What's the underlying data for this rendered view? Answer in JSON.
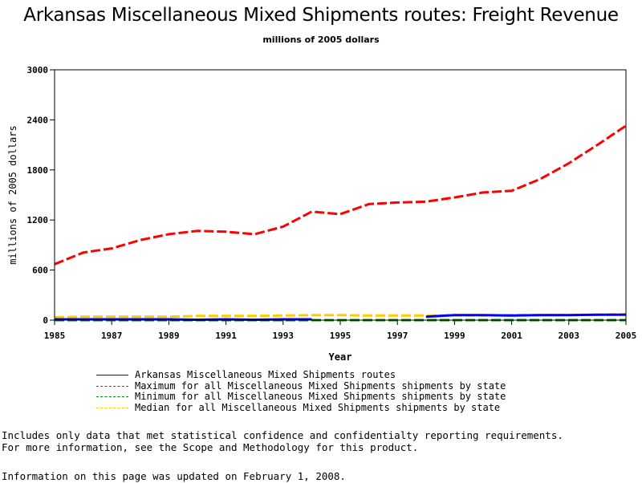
{
  "page": {
    "title": "Arkansas Miscellaneous Mixed Shipments routes: Freight Revenue",
    "subtitle": "millions of 2005 dollars",
    "note_line1": "Includes only data that met statistical confidence and confidentialty reporting requirements.",
    "note_line2": "For more information, see the Scope and Methodology for this product.",
    "updated": "Information on this page was updated on February 1, 2008."
  },
  "chart_data": {
    "type": "line",
    "title": "Arkansas Miscellaneous Mixed Shipments routes: Freight Revenue",
    "subtitle": "millions of 2005 dollars",
    "xlabel": "Year",
    "ylabel": "millions of 2005 dollars",
    "xlim": [
      1985,
      2005
    ],
    "ylim": [
      0,
      3000
    ],
    "x_ticks": [
      "1985",
      "1987",
      "1989",
      "1991",
      "1993",
      "1995",
      "1997",
      "1999",
      "2001",
      "2003",
      "2005"
    ],
    "y_ticks": [
      "0",
      "600",
      "1200",
      "1800",
      "2400",
      "3000"
    ],
    "x": [
      1985,
      1986,
      1987,
      1988,
      1989,
      1990,
      1991,
      1992,
      1993,
      1994,
      1995,
      1996,
      1997,
      1998,
      1999,
      2000,
      2001,
      2002,
      2003,
      2004,
      2005
    ],
    "legend_position": "bottom",
    "series": [
      {
        "name": "Arkansas Miscellaneous Mixed Shipments routes",
        "color": "#0000ff",
        "dash": "solid",
        "values": [
          10,
          10,
          10,
          10,
          10,
          5,
          10,
          5,
          10,
          10,
          null,
          null,
          null,
          40,
          60,
          60,
          55,
          60,
          60,
          65,
          65
        ]
      },
      {
        "name": "Maximum for all Miscellaneous Mixed Shipments shipments by state",
        "color": "#ff0000",
        "dash": "dashed",
        "values": [
          670,
          810,
          860,
          960,
          1030,
          1070,
          1060,
          1030,
          1120,
          1300,
          1270,
          1390,
          1410,
          1420,
          1470,
          1530,
          1550,
          1690,
          1880,
          2100,
          2330
        ]
      },
      {
        "name": "Minimum for all Miscellaneous Mixed Shipments shipments by state",
        "color": "#008000",
        "dash": "dashed",
        "values": [
          0,
          0,
          0,
          0,
          0,
          0,
          0,
          0,
          0,
          0,
          0,
          0,
          0,
          0,
          0,
          0,
          0,
          0,
          0,
          0,
          0
        ]
      },
      {
        "name": "Median for all Miscellaneous Mixed Shipments shipments by state",
        "color": "#ffcc00",
        "dash": "dashed",
        "values": [
          35,
          40,
          40,
          40,
          40,
          50,
          50,
          50,
          55,
          60,
          60,
          55,
          55,
          55,
          55,
          55,
          60,
          60,
          60,
          65,
          70
        ]
      }
    ]
  }
}
